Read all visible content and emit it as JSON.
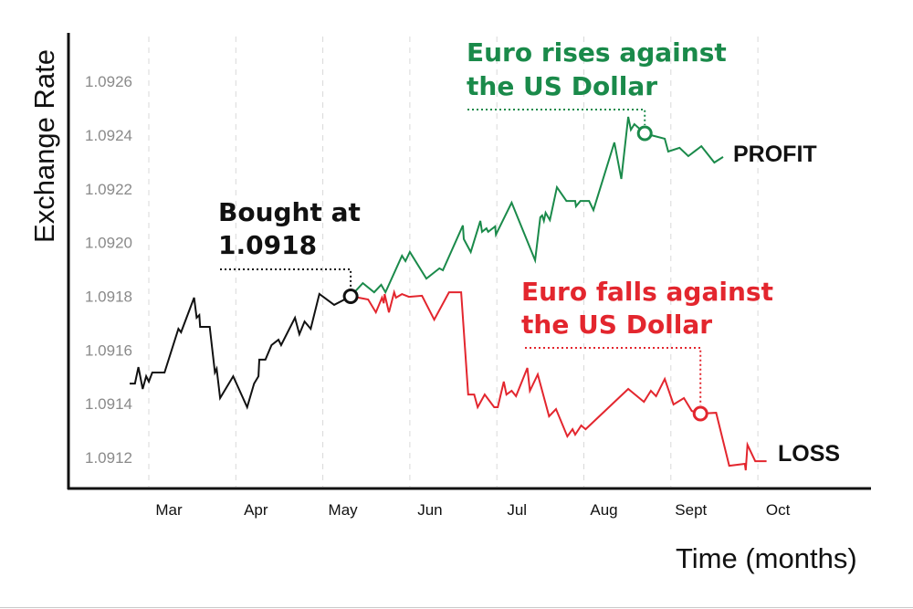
{
  "chart_data": {
    "type": "line",
    "title": "",
    "xlabel": "Time (months)",
    "ylabel": "Exchange Rate",
    "x_tick_labels": [
      "Mar",
      "Apr",
      "May",
      "Jun",
      "Jul",
      "Aug",
      "Sept",
      "Oct"
    ],
    "x_ticks": [
      3,
      4,
      5,
      6,
      7,
      8,
      9,
      10
    ],
    "y_tick_labels": [
      "1.0926",
      "1.0924",
      "1.0922",
      "1.0920",
      "1.0918",
      "1.0916",
      "1.0914",
      "1.0912"
    ],
    "y_ticks": [
      1.0926,
      1.0924,
      1.0922,
      1.092,
      1.0918,
      1.0916,
      1.0914,
      1.0912
    ],
    "xlim": [
      2.2,
      11.3
    ],
    "ylim": [
      1.09112,
      1.09275
    ],
    "grid": "vertical dashed",
    "colors": {
      "history": "#111111",
      "profit": "#1a8a4a",
      "loss": "#e3262e",
      "tick": "#8a8a8a"
    },
    "series": [
      {
        "name": "history",
        "color": "#111111",
        "x": [
          2.78,
          2.84,
          2.88,
          2.93,
          2.97,
          3.0,
          3.04,
          3.18,
          3.34,
          3.37,
          3.52,
          3.55,
          3.58,
          3.59,
          3.7,
          3.76,
          3.78,
          3.82,
          3.97,
          4.13,
          4.21,
          4.26,
          4.27,
          4.34,
          4.41,
          4.49,
          4.52,
          4.68,
          4.73,
          4.79,
          4.86,
          4.96,
          5.13,
          5.32
        ],
        "y": [
          1.091475,
          1.091475,
          1.091536,
          1.091455,
          1.091502,
          1.091482,
          1.091516,
          1.091516,
          1.091679,
          1.091666,
          1.091795,
          1.09172,
          1.09173,
          1.091686,
          1.091686,
          1.091516,
          1.09153,
          1.091421,
          1.091502,
          1.091387,
          1.091475,
          1.091502,
          1.091564,
          1.091564,
          1.091618,
          1.091638,
          1.091618,
          1.09172,
          1.091659,
          1.091706,
          1.091679,
          1.091809,
          1.091768,
          1.0918
        ]
      },
      {
        "name": "profit",
        "color": "#1a8a4a",
        "x": [
          5.32,
          5.46,
          5.59,
          5.67,
          5.72,
          5.91,
          5.95,
          6.0,
          6.19,
          6.34,
          6.38,
          6.61,
          6.62,
          6.7,
          6.81,
          6.83,
          6.88,
          6.9,
          6.98,
          6.99,
          7.17,
          7.44,
          7.5,
          7.52,
          7.54,
          7.56,
          7.61,
          7.69,
          7.8,
          7.9,
          7.91,
          7.96,
          8.06,
          8.11,
          8.35,
          8.43,
          8.51,
          8.54,
          8.58,
          8.7,
          8.77,
          8.93,
          8.97,
          9.1,
          9.2,
          9.35,
          9.5,
          9.6
        ],
        "y": [
          1.0918,
          1.091849,
          1.091815,
          1.091843,
          1.091815,
          1.091951,
          1.091931,
          1.091965,
          1.091866,
          1.091904,
          1.091897,
          1.092064,
          1.092013,
          1.091965,
          1.092081,
          1.09204,
          1.092053,
          1.09204,
          1.09206,
          1.09203,
          1.092149,
          1.091934,
          1.092094,
          1.092101,
          1.092081,
          1.092111,
          1.092084,
          1.092206,
          1.092155,
          1.092155,
          1.092135,
          1.092155,
          1.092155,
          1.092121,
          1.092373,
          1.092237,
          1.092468,
          1.09242,
          1.092441,
          1.092407,
          1.0924,
          1.092387,
          1.092339,
          1.092353,
          1.092322,
          1.092359,
          1.092298,
          1.092319
        ]
      },
      {
        "name": "loss",
        "color": "#e3262e",
        "x": [
          5.32,
          5.41,
          5.52,
          5.61,
          5.68,
          5.7,
          5.71,
          5.76,
          5.82,
          5.84,
          5.91,
          5.99,
          6.14,
          6.28,
          6.45,
          6.59,
          6.67,
          6.74,
          6.78,
          6.86,
          6.97,
          7.01,
          7.08,
          7.11,
          7.17,
          7.22,
          7.35,
          7.38,
          7.47,
          7.6,
          7.68,
          7.81,
          7.87,
          7.9,
          7.97,
          8.02,
          8.51,
          8.69,
          8.77,
          8.83,
          8.93,
          9.03,
          9.15,
          9.24,
          9.34,
          9.52,
          9.67,
          9.85,
          9.86,
          9.88,
          9.97,
          10.1
        ],
        "y": [
          1.0918,
          1.091795,
          1.091788,
          1.09174,
          1.091795,
          1.091774,
          1.091808,
          1.09174,
          1.091815,
          1.091795,
          1.091808,
          1.091798,
          1.091802,
          1.091713,
          1.091815,
          1.091815,
          1.091434,
          1.091434,
          1.091387,
          1.091434,
          1.091387,
          1.091387,
          1.091482,
          1.091434,
          1.091448,
          1.091428,
          1.091533,
          1.091448,
          1.091509,
          1.091353,
          1.09138,
          1.091278,
          1.091305,
          1.091285,
          1.091319,
          1.091305,
          1.091455,
          1.091407,
          1.091448,
          1.091428,
          1.091492,
          1.091397,
          1.091421,
          1.091373,
          1.091363,
          1.091366,
          1.091169,
          1.091176,
          1.091152,
          1.091247,
          1.091186,
          1.091186
        ]
      }
    ],
    "markers": [
      {
        "name": "bought",
        "x": 5.32,
        "y": 1.0918,
        "color": "#111111"
      },
      {
        "name": "rise",
        "x": 8.7,
        "y": 1.092407,
        "color": "#1a8a4a"
      },
      {
        "name": "fall",
        "x": 9.34,
        "y": 1.091363,
        "color": "#e3262e"
      }
    ],
    "annotations": {
      "bought": [
        "Bought at",
        "1.0918"
      ],
      "rise": [
        "Euro rises against",
        "the US Dollar"
      ],
      "fall": [
        "Euro falls against",
        "the US Dollar"
      ],
      "profit": "PROFIT",
      "loss": "LOSS"
    }
  }
}
